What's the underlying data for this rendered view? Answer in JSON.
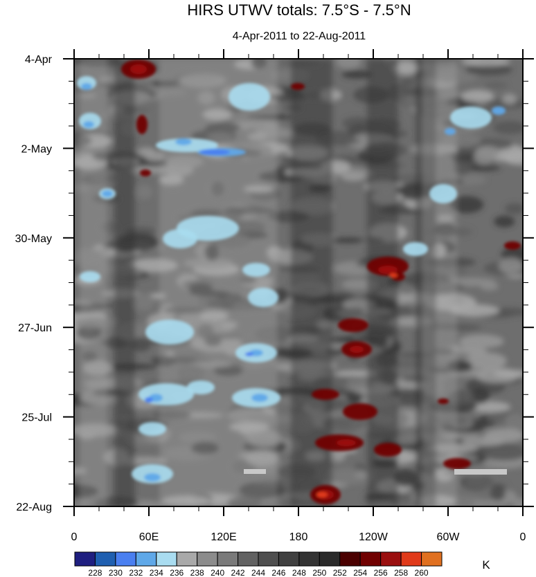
{
  "chart_data": {
    "type": "heatmap",
    "title": "HIRS UTWV totals: 7.5°S - 7.5°N",
    "subtitle": "4-Apr-2011 to 22-Aug-2011",
    "y_ticks": [
      "4-Apr",
      "2-May",
      "30-May",
      "27-Jun",
      "25-Jul",
      "22-Aug"
    ],
    "x_ticks": [
      "0",
      "60E",
      "120E",
      "180",
      "120W",
      "60W",
      "0"
    ],
    "colorbar": {
      "units": "K",
      "levels": [
        "228",
        "230",
        "232",
        "234",
        "236",
        "238",
        "240",
        "242",
        "244",
        "246",
        "248",
        "250",
        "252",
        "254",
        "256",
        "258",
        "260"
      ],
      "colors": [
        "#1f1f80",
        "#1f5fb0",
        "#4a7ff0",
        "#5fa8e8",
        "#a9dcf0",
        "#a9a9a9",
        "#8c8c8c",
        "#7a7a7a",
        "#626262",
        "#4f4f4f",
        "#404040",
        "#333333",
        "#2a2a2a",
        "#4a0000",
        "#700000",
        "#9a0f0f",
        "#e03a1a",
        "#e07020"
      ]
    }
  }
}
